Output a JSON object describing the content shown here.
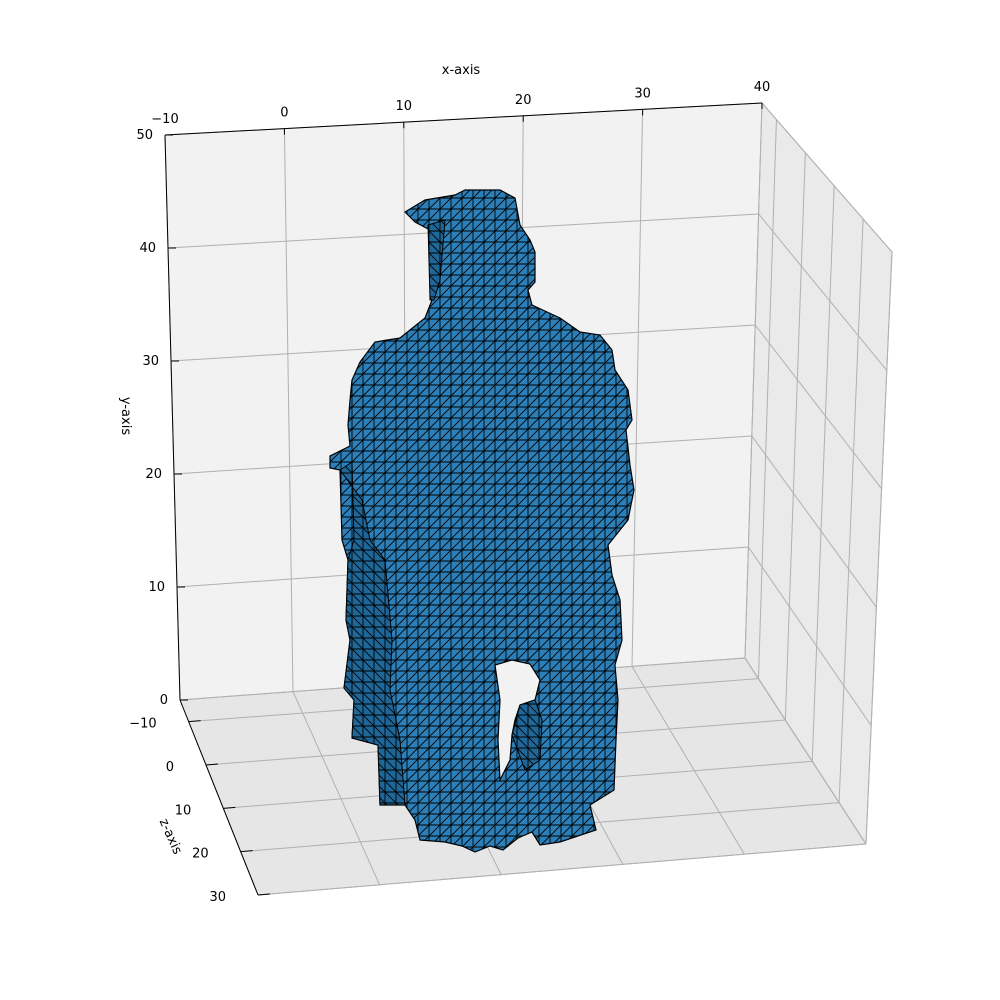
{
  "chart_data": {
    "type": "3d-surface-mesh",
    "title": "",
    "xlabel": "x-axis",
    "ylabel": "y-axis",
    "zlabel": "z-axis",
    "x_ticks": [
      "−10",
      "0",
      "10",
      "20",
      "30",
      "40"
    ],
    "y_ticks": [
      "0",
      "10",
      "20",
      "30",
      "40",
      "50"
    ],
    "z_ticks": [
      "−10",
      "0",
      "10",
      "20",
      "30"
    ],
    "xlim": [
      -10,
      40
    ],
    "ylim": [
      0,
      50
    ],
    "zlim": [
      -15,
      30
    ],
    "grid": true,
    "mesh_face_color": "#2c7fb8",
    "mesh_edge_color": "#000000",
    "pane_color": "#f2f2f2",
    "grid_color": "#b0b0b0"
  }
}
